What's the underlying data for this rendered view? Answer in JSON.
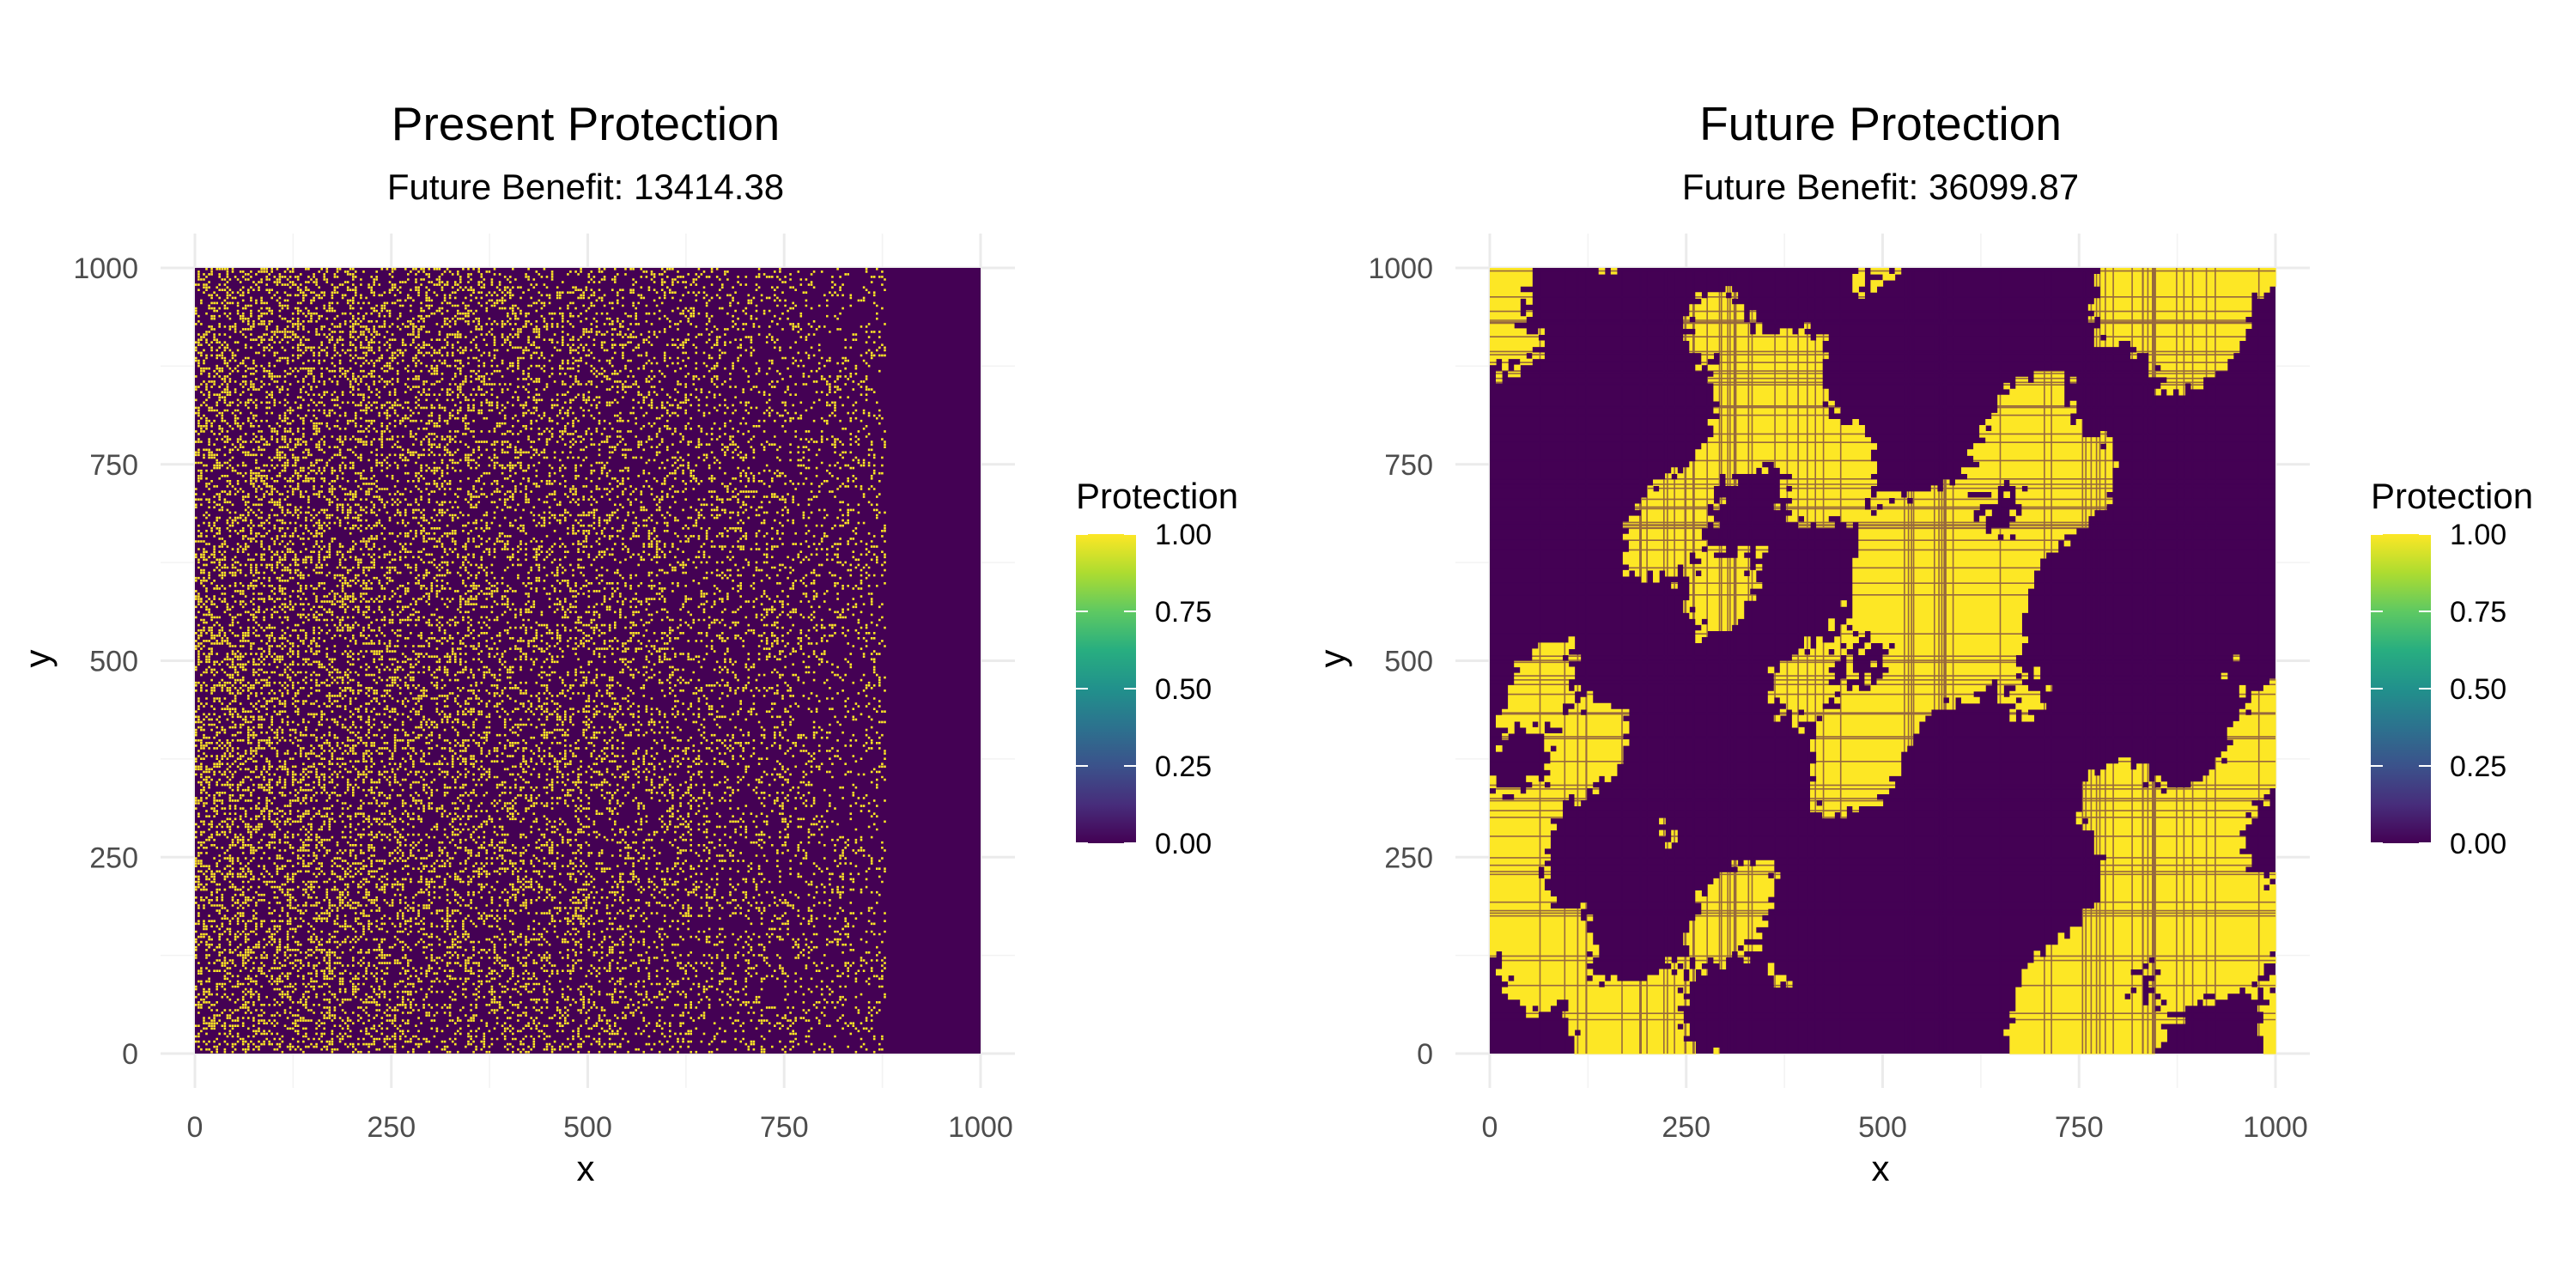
{
  "chart_data": [
    {
      "type": "heatmap",
      "title": "Present Protection",
      "subtitle": "Future Benefit: 13414.38",
      "xlabel": "x",
      "ylabel": "y",
      "xlim": [
        0,
        1000
      ],
      "ylim": [
        0,
        1000
      ],
      "x_ticks": [
        0,
        250,
        500,
        750,
        1000
      ],
      "y_ticks": [
        0,
        250,
        500,
        750,
        1000
      ],
      "x_tick_labels": [
        "0",
        "250",
        "500",
        "750",
        "1000"
      ],
      "y_tick_labels": [
        "0",
        "250",
        "500",
        "750",
        "1000"
      ],
      "value_range": [
        0,
        1
      ],
      "colorscale": "viridis",
      "low_color": "#440154",
      "high_color": "#FDE725",
      "pattern": "random scattered protected cells; density decreasing from x=0 to x≈880; no protection for x > 880",
      "protected_x_extent": [
        0,
        880
      ],
      "legend": {
        "title": "Protection",
        "placement": "right",
        "tick_values": [
          1.0,
          0.75,
          0.5,
          0.25,
          0.0
        ],
        "tick_labels": [
          "1.00",
          "0.75",
          "0.50",
          "0.25",
          "0.00"
        ]
      }
    },
    {
      "type": "heatmap",
      "title": "Future Protection",
      "subtitle": "Future Benefit: 36099.87",
      "xlabel": "x",
      "ylabel": "y",
      "xlim": [
        0,
        1000
      ],
      "ylim": [
        0,
        1000
      ],
      "x_ticks": [
        0,
        250,
        500,
        750,
        1000
      ],
      "y_ticks": [
        0,
        250,
        500,
        750,
        1000
      ],
      "x_tick_labels": [
        "0",
        "250",
        "500",
        "750",
        "1000"
      ],
      "y_tick_labels": [
        "0",
        "250",
        "500",
        "750",
        "1000"
      ],
      "value_range": [
        0,
        1
      ],
      "colorscale": "viridis",
      "low_color": "#440154",
      "high_color": "#FDE725",
      "pattern": "large contiguous protected patches with grid-like line texture",
      "legend": {
        "title": "Protection",
        "placement": "right",
        "tick_values": [
          1.0,
          0.75,
          0.5,
          0.25,
          0.0
        ],
        "tick_labels": [
          "1.00",
          "0.75",
          "0.50",
          "0.25",
          "0.00"
        ]
      }
    }
  ]
}
